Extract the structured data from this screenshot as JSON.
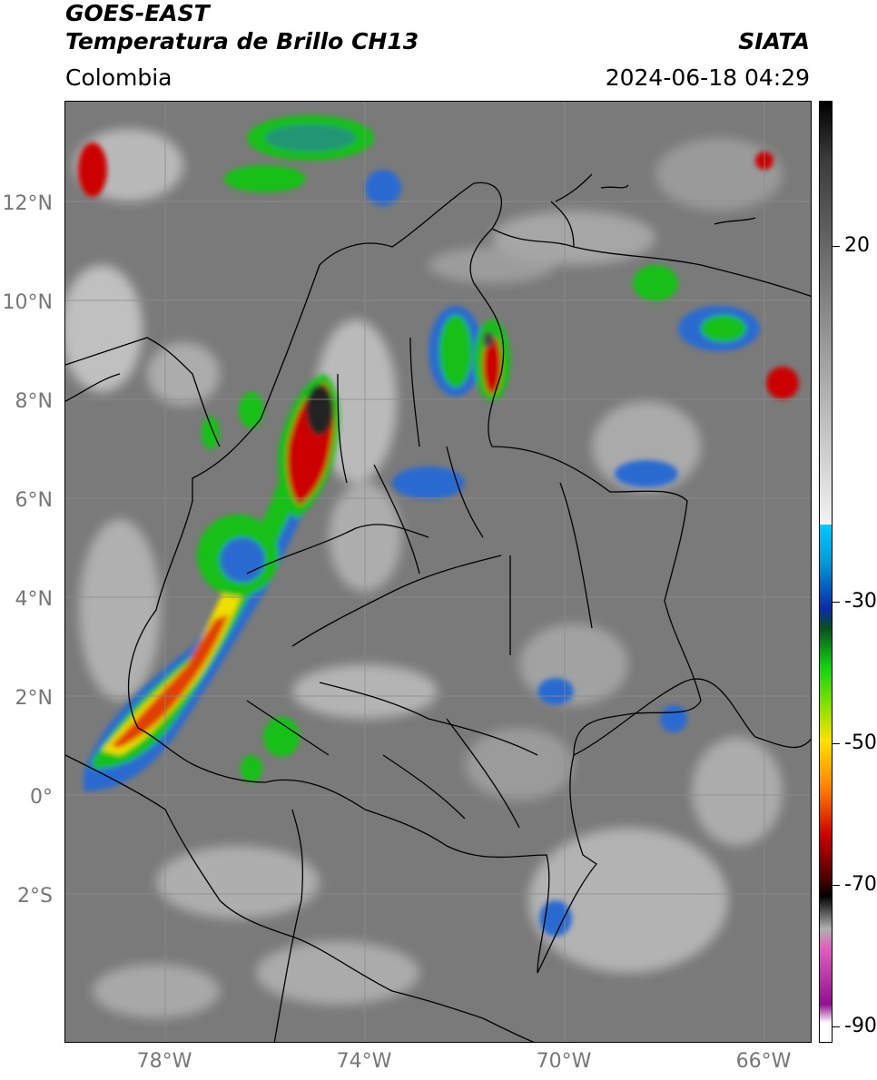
{
  "header": {
    "satellite": "GOES-EAST",
    "product": "Temperatura de Brillo CH13",
    "organization": "SIATA",
    "region": "Colombia",
    "timestamp": "2024-06-18 04:29"
  },
  "map": {
    "lat_ticks": [
      "12°N",
      "10°N",
      "8°N",
      "6°N",
      "4°N",
      "2°N",
      "0°",
      "2°S"
    ],
    "lon_ticks": [
      "78°W",
      "74°W",
      "70°W",
      "66°W"
    ],
    "colors": {
      "background_gray": "#7a7a7a",
      "border_lines": "#000000",
      "grid": "#8c8c8c"
    }
  },
  "colorbar": {
    "tick_labels": [
      "20",
      "-30",
      "-50",
      "-70",
      "-90"
    ],
    "colors": {
      "warm_gray": "#9a9a9a",
      "cold_cyan": "#00c8ff",
      "cold_blue": "#0a2aa8",
      "green": "#10d010",
      "yellow": "#ffe000",
      "orange": "#ff8000",
      "red": "#cc0000",
      "dark_red": "#400000",
      "black": "#000000",
      "pink": "#e060c0",
      "purple": "#901090"
    }
  }
}
